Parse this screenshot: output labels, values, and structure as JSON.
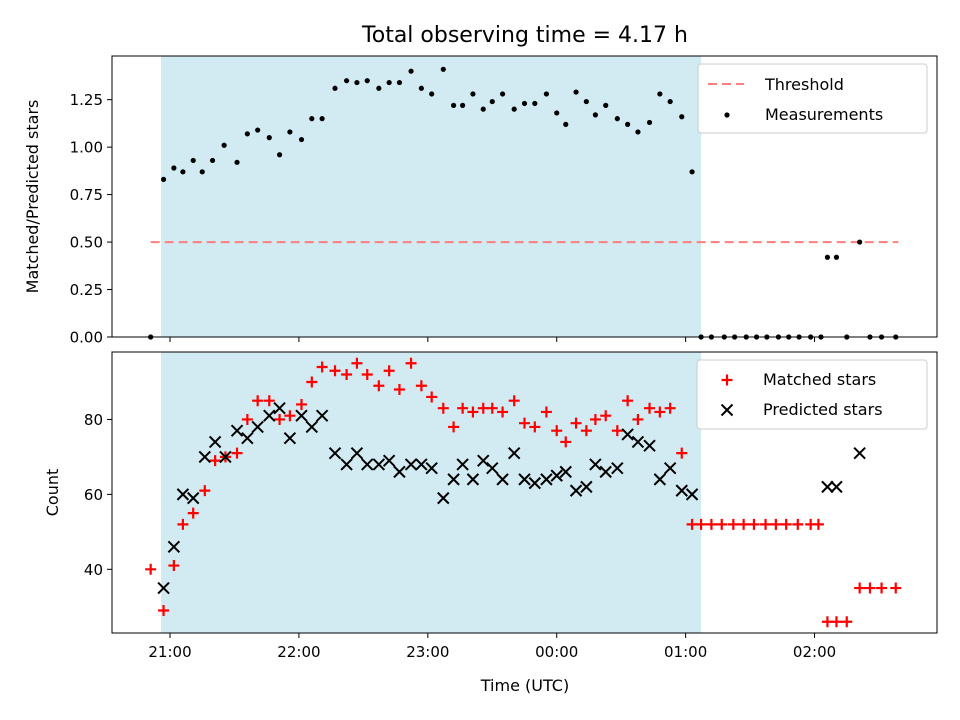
{
  "title": "Total observing time = 4.17 h",
  "xlabel": "Time (UTC)",
  "x_ticks": [
    {
      "t": 21.0,
      "label": "21:00"
    },
    {
      "t": 22.0,
      "label": "22:00"
    },
    {
      "t": 23.0,
      "label": "23:00"
    },
    {
      "t": 24.0,
      "label": "00:00"
    },
    {
      "t": 25.0,
      "label": "01:00"
    },
    {
      "t": 26.0,
      "label": "02:00"
    }
  ],
  "x_note": "time axis in hours UTC; values beyond 24 fall after midnight (00:00, 01:00, 02:00)",
  "xlim": [
    20.55,
    26.95
  ],
  "observing_window": {
    "start": 20.93,
    "end": 25.12,
    "color": "#add8e6"
  },
  "colors": {
    "threshold": "#ff7f7f",
    "measurements": "#000000",
    "matched": "#ff0000",
    "predicted": "#000000",
    "shade": "#add8e6"
  },
  "chart_data": [
    {
      "type": "scatter",
      "ylabel": "Matched/Predicted stars",
      "ylim": [
        0,
        1.48
      ],
      "y_ticks": [
        "0.00",
        "0.25",
        "0.50",
        "0.75",
        "1.00",
        "1.25"
      ],
      "legend_placement": "top-right",
      "threshold": {
        "name": "Threshold",
        "y": 0.5,
        "x_range": [
          20.85,
          26.65
        ],
        "style": "dashed"
      },
      "series": [
        {
          "name": "Measurements",
          "marker": "dot",
          "x": [
            20.85,
            20.95,
            21.03,
            21.1,
            21.18,
            21.25,
            21.33,
            21.42,
            21.52,
            21.6,
            21.68,
            21.77,
            21.85,
            21.93,
            22.02,
            22.1,
            22.18,
            22.28,
            22.37,
            22.45,
            22.53,
            22.62,
            22.7,
            22.78,
            22.87,
            22.95,
            23.03,
            23.12,
            23.2,
            23.27,
            23.35,
            23.43,
            23.5,
            23.58,
            23.67,
            23.75,
            23.83,
            23.92,
            24.0,
            24.07,
            24.15,
            24.23,
            24.3,
            24.38,
            24.47,
            24.55,
            24.63,
            24.72,
            24.8,
            24.88,
            24.97,
            25.05,
            25.12,
            25.2,
            25.3,
            25.38,
            25.47,
            25.55,
            25.63,
            25.72,
            25.8,
            25.88,
            25.97,
            26.05,
            26.1,
            26.17,
            26.25,
            26.35,
            26.43,
            26.52,
            26.63
          ],
          "y": [
            0.0,
            0.83,
            0.89,
            0.87,
            0.93,
            0.87,
            0.93,
            1.01,
            0.92,
            1.07,
            1.09,
            1.05,
            0.96,
            1.08,
            1.04,
            1.15,
            1.15,
            1.31,
            1.35,
            1.34,
            1.35,
            1.31,
            1.34,
            1.34,
            1.4,
            1.31,
            1.28,
            1.41,
            1.22,
            1.22,
            1.28,
            1.2,
            1.24,
            1.28,
            1.2,
            1.23,
            1.23,
            1.28,
            1.18,
            1.12,
            1.29,
            1.24,
            1.17,
            1.22,
            1.15,
            1.12,
            1.08,
            1.13,
            1.28,
            1.24,
            1.16,
            0.87,
            0.0,
            0.0,
            0.0,
            0.0,
            0.0,
            0.0,
            0.0,
            0.0,
            0.0,
            0.0,
            0.0,
            0.0,
            0.42,
            0.42,
            0.0,
            0.5,
            0.0,
            0.0,
            0.0
          ]
        }
      ]
    },
    {
      "type": "scatter",
      "ylabel": "Count",
      "ylim": [
        23,
        98
      ],
      "y_ticks": [
        "40",
        "60",
        "80"
      ],
      "legend_placement": "top-right",
      "series": [
        {
          "name": "Matched stars",
          "marker": "plus",
          "x": [
            20.85,
            20.95,
            21.03,
            21.1,
            21.18,
            21.27,
            21.35,
            21.43,
            21.52,
            21.6,
            21.68,
            21.77,
            21.85,
            21.93,
            22.02,
            22.1,
            22.18,
            22.28,
            22.37,
            22.45,
            22.53,
            22.62,
            22.7,
            22.78,
            22.87,
            22.95,
            23.03,
            23.12,
            23.2,
            23.27,
            23.35,
            23.43,
            23.5,
            23.58,
            23.67,
            23.75,
            23.83,
            23.92,
            24.0,
            24.07,
            24.15,
            24.23,
            24.3,
            24.38,
            24.47,
            24.55,
            24.63,
            24.72,
            24.8,
            24.88,
            24.97,
            25.05,
            25.12,
            25.2,
            25.28,
            25.37,
            25.45,
            25.53,
            25.62,
            25.7,
            25.78,
            25.87,
            25.97,
            26.03,
            26.1,
            26.17,
            26.25,
            26.35,
            26.43,
            26.52,
            26.63
          ],
          "y": [
            40,
            29,
            41,
            52,
            55,
            61,
            69,
            70,
            71,
            80,
            85,
            85,
            80,
            81,
            84,
            90,
            94,
            93,
            92,
            95,
            92,
            89,
            93,
            88,
            95,
            89,
            86,
            83,
            78,
            83,
            82,
            83,
            83,
            82,
            85,
            79,
            78,
            82,
            77,
            74,
            79,
            77,
            80,
            81,
            77,
            85,
            80,
            83,
            82,
            83,
            71,
            52,
            52,
            52,
            52,
            52,
            52,
            52,
            52,
            52,
            52,
            52,
            52,
            52,
            26,
            26,
            26,
            35,
            35,
            35,
            35
          ]
        },
        {
          "name": "Predicted stars",
          "marker": "x",
          "x": [
            20.95,
            21.03,
            21.1,
            21.18,
            21.27,
            21.35,
            21.43,
            21.52,
            21.6,
            21.68,
            21.77,
            21.85,
            21.93,
            22.02,
            22.1,
            22.18,
            22.28,
            22.37,
            22.45,
            22.53,
            22.62,
            22.7,
            22.78,
            22.87,
            22.95,
            23.03,
            23.12,
            23.2,
            23.27,
            23.35,
            23.43,
            23.5,
            23.58,
            23.67,
            23.75,
            23.83,
            23.92,
            24.0,
            24.07,
            24.15,
            24.23,
            24.3,
            24.38,
            24.47,
            24.55,
            24.63,
            24.72,
            24.8,
            24.88,
            24.97,
            25.05,
            26.1,
            26.17,
            26.35
          ],
          "y": [
            35,
            46,
            60,
            59,
            70,
            74,
            70,
            77,
            75,
            78,
            81,
            83,
            75,
            81,
            78,
            81,
            71,
            68,
            71,
            68,
            68,
            69,
            66,
            68,
            68,
            67,
            59,
            64,
            68,
            64,
            69,
            67,
            64,
            71,
            64,
            63,
            64,
            65,
            66,
            61,
            62,
            68,
            66,
            67,
            76,
            74,
            73,
            64,
            67,
            61,
            60,
            62,
            62,
            71
          ]
        }
      ]
    }
  ]
}
